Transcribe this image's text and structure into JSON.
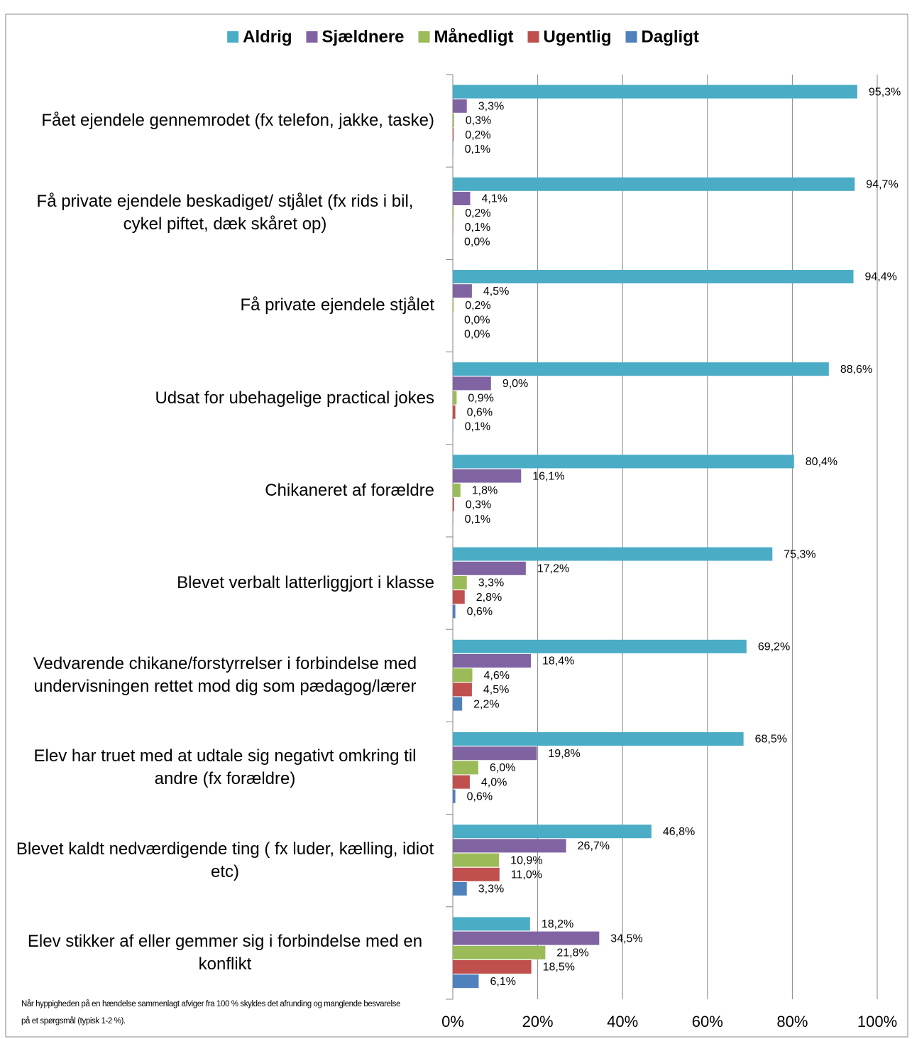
{
  "chart_data": {
    "type": "barh",
    "categories": [
      "Fået ejendele gennemrodet (fx telefon, jakke, taske)",
      "Få private ejendele beskadiget/ stjålet (fx rids i bil, cykel piftet, dæk skåret op)",
      "Få private ejendele stjålet",
      "Udsat for ubehagelige practical jokes",
      "Chikaneret af forældre",
      "Blevet verbalt latterliggjort i klasse",
      "Vedvarende chikane/forstyrrelser i forbindelse med undervisningen rettet mod dig som pædagog/lærer",
      "Elev har truet med at udtale sig negativt omkring til andre (fx forældre)",
      "Blevet kaldt nedværdigende ting ( fx luder, kælling, idiot etc)",
      "Elev stikker af eller gemmer sig i forbindelse med en konflikt"
    ],
    "series": [
      {
        "name": "Aldrig",
        "color": "#4bacc6",
        "values": [
          95.3,
          94.7,
          94.4,
          88.6,
          80.4,
          75.3,
          69.2,
          68.5,
          46.8,
          18.2
        ],
        "value_labels": [
          "95,3%",
          "94,7%",
          "94,4%",
          "88,6%",
          "80,4%",
          "75,3%",
          "69,2%",
          "68,5%",
          "46,8%",
          "18,2%"
        ]
      },
      {
        "name": "Sjældnere",
        "color": "#8064a2",
        "values": [
          3.3,
          4.1,
          4.5,
          9.0,
          16.1,
          17.2,
          18.4,
          19.8,
          26.7,
          34.5
        ],
        "value_labels": [
          "3,3%",
          "4,1%",
          "4,5%",
          "9,0%",
          "16,1%",
          "17,2%",
          "18,4%",
          "19,8%",
          "26,7%",
          "34,5%"
        ]
      },
      {
        "name": "Månedligt",
        "color": "#9bbb59",
        "values": [
          0.3,
          0.2,
          0.2,
          0.9,
          1.8,
          3.3,
          4.6,
          6.0,
          10.9,
          21.8
        ],
        "value_labels": [
          "0,3%",
          "0,2%",
          "0,2%",
          "0,9%",
          "1,8%",
          "3,3%",
          "4,6%",
          "6,0%",
          "10,9%",
          "21,8%"
        ]
      },
      {
        "name": "Ugentlig",
        "color": "#c0504d",
        "values": [
          0.2,
          0.1,
          0.0,
          0.6,
          0.3,
          2.8,
          4.5,
          4.0,
          11.0,
          18.5
        ],
        "value_labels": [
          "0,2%",
          "0,1%",
          "0,0%",
          "0,6%",
          "0,3%",
          "2,8%",
          "4,5%",
          "4,0%",
          "11,0%",
          "18,5%"
        ]
      },
      {
        "name": "Dagligt",
        "color": "#4f81bd",
        "values": [
          0.1,
          0.0,
          0.0,
          0.1,
          0.1,
          0.6,
          2.2,
          0.6,
          3.3,
          6.1
        ],
        "value_labels": [
          "0,1%",
          "0,0%",
          "0,0%",
          "0,1%",
          "0,1%",
          "0,6%",
          "2,2%",
          "0,6%",
          "3,3%",
          "6,1%"
        ]
      }
    ],
    "xlim": [
      0,
      100
    ],
    "xticks": [
      {
        "value": 0,
        "label": "0%"
      },
      {
        "value": 20,
        "label": "20%"
      },
      {
        "value": 40,
        "label": "40%"
      },
      {
        "value": 60,
        "label": "60%"
      },
      {
        "value": 80,
        "label": "80%"
      },
      {
        "value": 100,
        "label": "100%"
      }
    ],
    "grid": true,
    "legend": "top",
    "note": "Når hyppigheden på en hændelse sammenlagt afviger fra 100 % skyldes det afrunding og manglende besvarelse på et spørgsmål (typisk 1-2 %)."
  }
}
